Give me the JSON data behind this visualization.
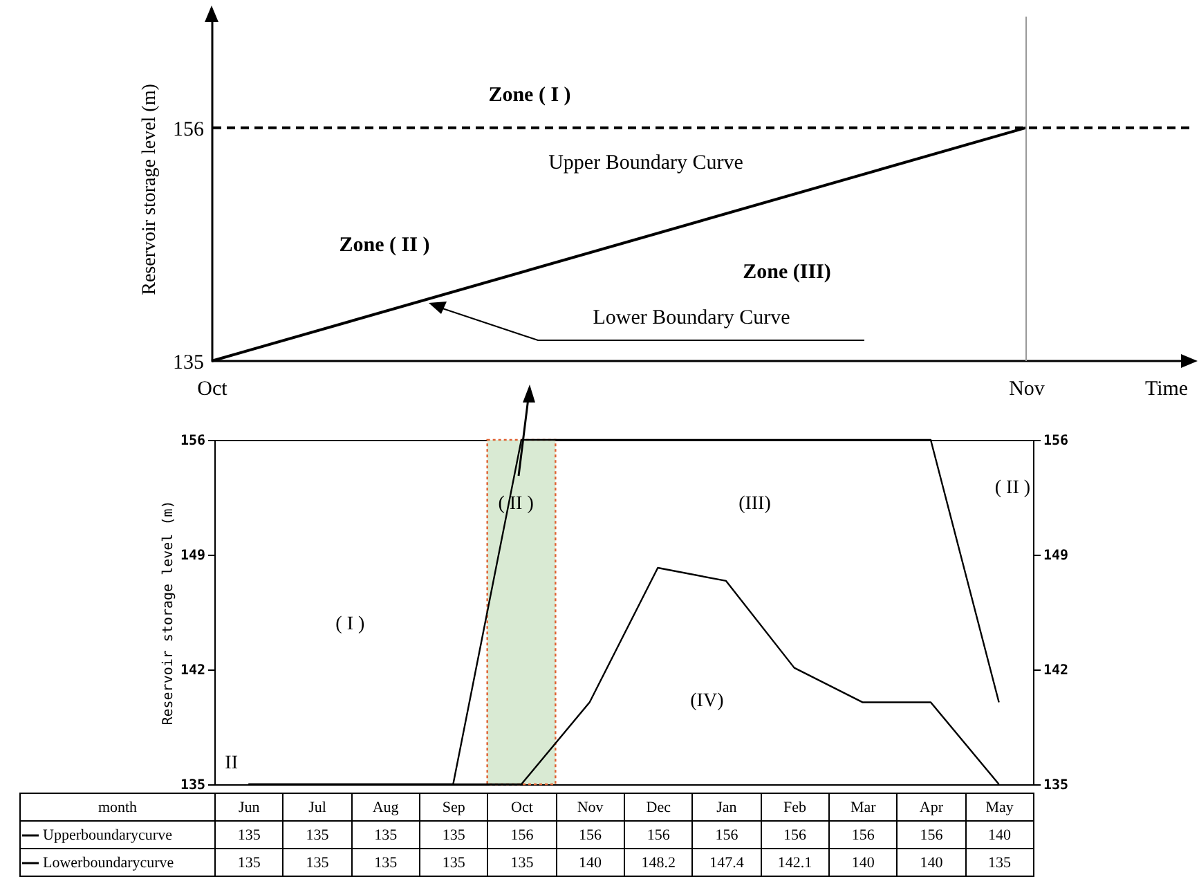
{
  "chart_data": [
    {
      "type": "line",
      "xlabel": "Time",
      "ylabel": "Reservoir storage level (m)",
      "categories": [
        "Oct",
        "Nov"
      ],
      "ylim": [
        135,
        166
      ],
      "yticks": [
        135,
        156
      ],
      "series": [
        {
          "color": "#000000",
          "values": [
            135,
            156
          ]
        }
      ],
      "ref_lines": [
        {
          "axis": "y",
          "value": 156,
          "line_style": "dashed",
          "color": "#000000"
        },
        {
          "axis": "x",
          "value": "Nov",
          "color": "#999999"
        }
      ],
      "annotations": [
        "Zone ( I )",
        "Upper Boundary Curve",
        "Zone ( II )",
        "Zone (III)",
        "Lower Boundary Curve"
      ]
    },
    {
      "type": "line",
      "xlabel": "month",
      "ylabel": "Reservoir storage level (m)",
      "categories": [
        "Jun",
        "Jul",
        "Aug",
        "Sep",
        "Oct",
        "Nov",
        "Dec",
        "Jan",
        "Feb",
        "Mar",
        "Apr",
        "May"
      ],
      "ylim": [
        135,
        156
      ],
      "yticks": [
        135,
        142,
        149,
        156
      ],
      "y2lim": [
        135,
        156
      ],
      "y2ticks": [
        135,
        142,
        149,
        156
      ],
      "series": [
        {
          "name": "Upperboundarycurve",
          "color": "#000000",
          "values": [
            135,
            135,
            135,
            135,
            156,
            156,
            156,
            156,
            156,
            156,
            156,
            140
          ]
        },
        {
          "name": "Lowerboundarycurve",
          "color": "#000000",
          "values": [
            135,
            135,
            135,
            135,
            135,
            140,
            148.2,
            147.4,
            142.1,
            140,
            140,
            135
          ]
        }
      ],
      "bands": [
        {
          "axis": "x",
          "from": "Oct",
          "to": "Oct",
          "color": "#d9ead3"
        }
      ],
      "data_labels": true,
      "legend": "bottom left",
      "annotations": [
        "( I )",
        "( II )",
        "(III)",
        "(IV)",
        "( II )",
        "II"
      ]
    }
  ]
}
